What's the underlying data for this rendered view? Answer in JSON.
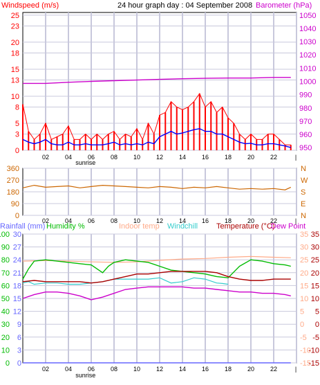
{
  "header": {
    "windspeed_label": "Windspeed (m/s)",
    "title": "24 hour graph day : 04 September 2008",
    "barometer_label": "Barometer (hPa)"
  },
  "colors": {
    "windspeed": "#ff0000",
    "windspeed_avg": "#0000ff",
    "barometer": "#cc00cc",
    "direction": "#cc6600",
    "rainfall": "#6666ff",
    "humidity": "#00bb00",
    "indoor_temp": "#ffaa88",
    "windchill": "#33cccc",
    "temperature": "#aa0000",
    "dew_point": "#cc00cc",
    "grid": "#c8c8dc",
    "frame": "#000000"
  },
  "chart_data": [
    {
      "type": "line",
      "title": "24 hour graph day : 04 September 2008",
      "x_ticks": [
        "02",
        "04",
        "06",
        "08",
        "10",
        "12",
        "14",
        "16",
        "18",
        "20",
        "22",
        "|"
      ],
      "x_annotation": "sunrise",
      "left_axis": {
        "label": "Windspeed (m/s)",
        "ticks": [
          0,
          3,
          5,
          8,
          10,
          13,
          15,
          18,
          20,
          23,
          25
        ],
        "ylim": [
          0,
          25.5
        ]
      },
      "right_axis": {
        "label": "Barometer (hPa)",
        "ticks": [
          950,
          960,
          970,
          980,
          990,
          1000,
          1010,
          1020,
          1030,
          1040,
          1050
        ],
        "ylim": [
          948,
          1052
        ]
      },
      "series": [
        {
          "name": "Windspeed (m/s)",
          "axis": "left",
          "x": [
            0,
            0.5,
            1,
            1.5,
            2,
            2.5,
            3,
            3.5,
            4,
            4.5,
            5,
            5.5,
            6,
            6.5,
            7,
            7.5,
            8,
            8.5,
            9,
            9.5,
            10,
            10.5,
            11,
            11.5,
            12,
            12.5,
            13,
            13.5,
            14,
            14.5,
            15,
            15.5,
            16,
            16.5,
            17,
            17.5,
            18,
            18.5,
            19,
            19.5,
            20,
            20.5,
            21,
            21.5,
            22,
            22.5,
            23,
            23.5
          ],
          "values": [
            8.5,
            3.5,
            2,
            3,
            5,
            2,
            2.5,
            3,
            4.5,
            2,
            2,
            3,
            2,
            3,
            2,
            3,
            3.5,
            2,
            3,
            2.5,
            4,
            2,
            5,
            3,
            6.5,
            7,
            9,
            8,
            7.5,
            8,
            9,
            10.5,
            8,
            9,
            7,
            8,
            6,
            5,
            3,
            2,
            3,
            2,
            2,
            3,
            3,
            2,
            1,
            1
          ]
        },
        {
          "name": "Average windspeed",
          "axis": "left",
          "x": [
            0,
            0.5,
            1,
            1.5,
            2,
            2.5,
            3,
            3.5,
            4,
            4.5,
            5,
            5.5,
            6,
            6.5,
            7,
            7.5,
            8,
            8.5,
            9,
            9.5,
            10,
            10.5,
            11,
            11.5,
            12,
            12.5,
            13,
            13.5,
            14,
            14.5,
            15,
            15.5,
            16,
            16.5,
            17,
            17.5,
            18,
            18.5,
            19,
            19.5,
            20,
            20.5,
            21,
            21.5,
            22,
            22.5,
            23,
            23.5
          ],
          "values": [
            2,
            1.5,
            1.2,
            1.5,
            2,
            1.2,
            1,
            1,
            1.5,
            1,
            1,
            1.2,
            1,
            1,
            1,
            1.2,
            1.5,
            1,
            1.2,
            1,
            1.2,
            1,
            1.5,
            1.2,
            2.5,
            3,
            3.5,
            3,
            3.2,
            3.5,
            3.8,
            4,
            3.5,
            3.5,
            3,
            3,
            2.5,
            2,
            1.5,
            1.2,
            1.3,
            1,
            1,
            1.2,
            1.2,
            1,
            0.8,
            0.5
          ]
        },
        {
          "name": "Barometer (hPa)",
          "axis": "right",
          "x": [
            0,
            2,
            4,
            6,
            8,
            10,
            12,
            14,
            16,
            18,
            20,
            22,
            23.5
          ],
          "values": [
            998.5,
            998.5,
            999.3,
            1000,
            1000.5,
            1001,
            1001.5,
            1002,
            1002.3,
            1002.5,
            1002.5,
            1003,
            1003
          ]
        }
      ]
    },
    {
      "type": "line",
      "x_ticks": [
        "02",
        "04",
        "06",
        "08",
        "10",
        "12",
        "14",
        "16",
        "18",
        "20",
        "22",
        "|"
      ],
      "left_axis": {
        "ticks": [
          0,
          90,
          180,
          270,
          360
        ],
        "ylim": [
          0,
          360
        ]
      },
      "right_axis": {
        "ticks": [
          "N",
          "W",
          "S",
          "E",
          "N"
        ]
      },
      "series": [
        {
          "name": "Wind direction",
          "x": [
            0,
            1,
            2,
            3,
            4,
            5,
            6,
            7,
            8,
            9,
            10,
            11,
            12,
            13,
            14,
            15,
            16,
            17,
            18,
            19,
            20,
            21,
            22,
            23,
            23.5
          ],
          "values": [
            210,
            230,
            215,
            220,
            225,
            210,
            220,
            230,
            225,
            220,
            215,
            210,
            220,
            215,
            205,
            215,
            210,
            220,
            210,
            200,
            205,
            200,
            205,
            195,
            215
          ]
        }
      ]
    },
    {
      "type": "line",
      "x_ticks": [
        "02",
        "04",
        "06",
        "08",
        "10",
        "12",
        "14",
        "16",
        "18",
        "20",
        "22",
        "|"
      ],
      "x_annotation": "sunrise",
      "legend": [
        "Rainfall (mm)",
        "Humidity %",
        "Indoor temp",
        "Windchill",
        "Temperature (°C)",
        "Dew Point"
      ],
      "axes": {
        "humidity": {
          "ticks": [
            0,
            10,
            20,
            30,
            40,
            50,
            60,
            70,
            80,
            90,
            100
          ],
          "ylim": [
            0,
            100
          ]
        },
        "rainfall": {
          "ticks": [
            0,
            3,
            6,
            9,
            12,
            15,
            18,
            21,
            24,
            27,
            30
          ],
          "ylim": [
            0,
            30
          ]
        },
        "temperature_right": {
          "ticks": [
            -15,
            -10,
            -5,
            0,
            5,
            10,
            15,
            20,
            25,
            30,
            35
          ],
          "ylim": [
            -15,
            35
          ]
        },
        "temperature_left_inner": {
          "ticks": [
            -15,
            -10,
            -5,
            0,
            5,
            10,
            15,
            20,
            25,
            30,
            35
          ]
        }
      },
      "series": [
        {
          "name": "Rainfall (mm)",
          "axis": "rainfall",
          "x": [
            0,
            23.5
          ],
          "values": [
            0,
            0
          ]
        },
        {
          "name": "Humidity %",
          "axis": "humidity",
          "x": [
            0,
            0.5,
            1,
            2,
            3,
            4,
            5,
            6,
            7,
            7.5,
            8,
            9,
            10,
            11,
            12,
            13,
            14,
            15,
            16,
            17,
            18,
            19,
            20,
            21,
            22,
            23,
            23.5
          ],
          "values": [
            65,
            73,
            79,
            80,
            79,
            78,
            77,
            76,
            70,
            75,
            78,
            80,
            79,
            78,
            75,
            72,
            71,
            70,
            69,
            67,
            66,
            75,
            80,
            79,
            77,
            76,
            75
          ]
        },
        {
          "name": "Indoor temp",
          "axis": "temperature_right",
          "x": [
            0,
            2,
            4,
            6,
            8,
            10,
            12,
            14,
            16,
            18,
            20,
            22,
            23.5
          ],
          "values": [
            24.5,
            24.7,
            24.5,
            24.2,
            24,
            24.2,
            24.8,
            25.3,
            25.5,
            26,
            26.3,
            26,
            25.8
          ]
        },
        {
          "name": "Windchill",
          "axis": "temperature_right",
          "x": [
            0,
            0.5,
            1,
            2,
            3,
            4,
            5,
            6,
            7,
            8,
            9,
            10,
            11,
            12,
            13,
            14,
            15,
            16,
            17,
            17.5,
            18
          ],
          "values": [
            16,
            16.5,
            15.5,
            16,
            16,
            15.5,
            15.5,
            16,
            16.5,
            17.5,
            17.5,
            17.5,
            17.5,
            18,
            16,
            16.5,
            18,
            17.5,
            16,
            15.8,
            15.5
          ]
        },
        {
          "name": "Temperature (°C)",
          "axis": "temperature_right",
          "x": [
            0,
            1,
            2,
            3,
            4,
            5,
            6,
            7,
            8,
            9,
            10,
            11,
            12,
            13,
            14,
            15,
            16,
            17,
            18,
            19,
            20,
            21,
            22,
            23,
            23.5
          ],
          "values": [
            16.5,
            17,
            16.5,
            16.5,
            16.5,
            16.5,
            16,
            16.5,
            17.5,
            18.5,
            19.5,
            19.5,
            20,
            20.5,
            20.5,
            20.5,
            20.5,
            20,
            18.5,
            17.5,
            17,
            17,
            17.5,
            17.5,
            17.5
          ]
        },
        {
          "name": "Dew Point",
          "axis": "temperature_right",
          "x": [
            0,
            1,
            2,
            3,
            4,
            5,
            6,
            7,
            8,
            9,
            10,
            11,
            12,
            13,
            14,
            15,
            16,
            17,
            18,
            19,
            20,
            21,
            22,
            23,
            23.5
          ],
          "values": [
            10,
            11.5,
            12.5,
            12.5,
            12,
            11,
            9.5,
            10.5,
            12,
            13.5,
            14,
            14.5,
            14.5,
            14.5,
            14.5,
            14,
            14,
            13.5,
            13,
            12.5,
            12.5,
            12,
            12,
            11.5,
            11
          ]
        }
      ]
    }
  ]
}
